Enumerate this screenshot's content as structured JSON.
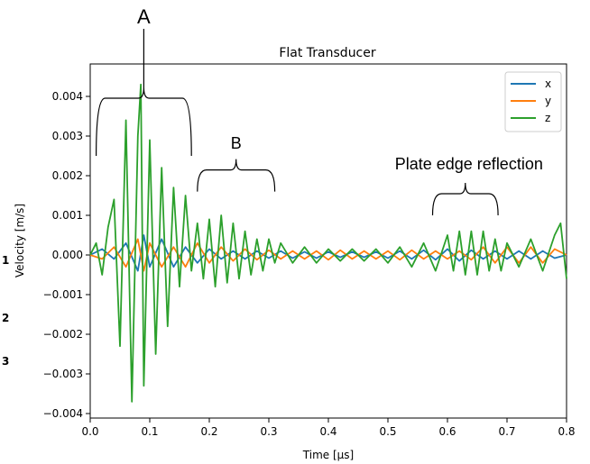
{
  "chart_data": {
    "type": "line",
    "title": "Flat Transducer",
    "xlabel": "Time [µs]",
    "ylabel": "Velocity [m/s]",
    "xlim": [
      0.0,
      0.8
    ],
    "ylim": [
      -0.0041,
      0.0045
    ],
    "xticks": [
      "0.0",
      "0.1",
      "0.2",
      "0.3",
      "0.4",
      "0.5",
      "0.6",
      "0.7",
      "0.8"
    ],
    "yticks": [
      "−0.004",
      "−0.003",
      "−0.002",
      "−0.001",
      "0.000",
      "0.001",
      "0.002",
      "0.003",
      "0.004"
    ],
    "legend_position": "top-right",
    "grid": false,
    "series": [
      {
        "name": "x",
        "color": "#1f77b4",
        "x": [
          0.0,
          0.02,
          0.04,
          0.06,
          0.08,
          0.09,
          0.1,
          0.12,
          0.14,
          0.16,
          0.18,
          0.2,
          0.22,
          0.24,
          0.26,
          0.28,
          0.3,
          0.32,
          0.34,
          0.36,
          0.38,
          0.4,
          0.42,
          0.44,
          0.46,
          0.48,
          0.5,
          0.52,
          0.54,
          0.56,
          0.58,
          0.6,
          0.62,
          0.64,
          0.66,
          0.68,
          0.7,
          0.72,
          0.74,
          0.76,
          0.78,
          0.8
        ],
        "y": [
          0.0,
          0.00015,
          -0.0001,
          0.0003,
          -0.0004,
          0.0005,
          -0.0003,
          0.0004,
          -0.0003,
          0.0002,
          -0.0002,
          0.00015,
          -0.0001,
          0.0001,
          -0.0001,
          0.0001,
          -8e-05,
          0.0001,
          -8e-05,
          8e-05,
          -8e-05,
          8e-05,
          -6e-05,
          8e-05,
          -6e-05,
          8e-05,
          -8e-05,
          0.0001,
          -0.0001,
          0.00012,
          -0.00012,
          0.00015,
          -0.00015,
          0.00012,
          -0.0001,
          0.0001,
          -0.0001,
          0.0001,
          -0.0001,
          0.0001,
          -8e-05,
          0.0
        ]
      },
      {
        "name": "y",
        "color": "#ff7f0e",
        "x": [
          0.0,
          0.02,
          0.04,
          0.06,
          0.08,
          0.09,
          0.1,
          0.12,
          0.14,
          0.16,
          0.18,
          0.2,
          0.22,
          0.24,
          0.26,
          0.28,
          0.3,
          0.32,
          0.34,
          0.36,
          0.38,
          0.4,
          0.42,
          0.44,
          0.46,
          0.48,
          0.5,
          0.52,
          0.54,
          0.56,
          0.58,
          0.6,
          0.62,
          0.64,
          0.66,
          0.68,
          0.7,
          0.72,
          0.74,
          0.76,
          0.78,
          0.8
        ],
        "y": [
          0.0,
          -0.0001,
          0.0002,
          -0.0003,
          0.0004,
          -0.0004,
          0.0003,
          -0.0003,
          0.0002,
          -0.0003,
          0.0003,
          -0.0002,
          0.0002,
          -0.00015,
          0.00015,
          -0.00012,
          0.00012,
          -0.0001,
          0.0001,
          -0.0001,
          0.0001,
          -0.00012,
          0.00012,
          -0.0001,
          0.0001,
          -0.0001,
          0.0001,
          -0.00012,
          0.00012,
          -0.0001,
          0.0001,
          -0.0001,
          0.0001,
          -0.00012,
          0.0002,
          -0.0002,
          0.0002,
          -0.0002,
          0.0002,
          -0.0002,
          0.00015,
          0.0
        ]
      },
      {
        "name": "z",
        "color": "#2ca02c",
        "x": [
          0.0,
          0.01,
          0.02,
          0.03,
          0.04,
          0.05,
          0.06,
          0.07,
          0.08,
          0.085,
          0.09,
          0.1,
          0.11,
          0.12,
          0.13,
          0.14,
          0.15,
          0.16,
          0.17,
          0.18,
          0.19,
          0.2,
          0.21,
          0.22,
          0.23,
          0.24,
          0.25,
          0.26,
          0.27,
          0.28,
          0.29,
          0.3,
          0.31,
          0.32,
          0.34,
          0.36,
          0.38,
          0.4,
          0.42,
          0.44,
          0.46,
          0.48,
          0.5,
          0.52,
          0.54,
          0.56,
          0.58,
          0.6,
          0.61,
          0.62,
          0.63,
          0.64,
          0.65,
          0.66,
          0.67,
          0.68,
          0.69,
          0.7,
          0.72,
          0.74,
          0.76,
          0.78,
          0.79,
          0.8
        ],
        "y": [
          0.0,
          0.0003,
          -0.0005,
          0.0007,
          0.0014,
          -0.0023,
          0.0034,
          -0.0037,
          0.003,
          0.0043,
          -0.0033,
          0.0029,
          -0.0025,
          0.0022,
          -0.0018,
          0.0017,
          -0.0008,
          0.0015,
          -0.0004,
          0.0008,
          -0.0006,
          0.0009,
          -0.0008,
          0.001,
          -0.0007,
          0.0008,
          -0.0006,
          0.0006,
          -0.0005,
          0.0004,
          -0.0004,
          0.0004,
          -0.0002,
          0.0003,
          -0.0002,
          0.0002,
          -0.0002,
          0.00015,
          -0.00015,
          0.00015,
          -0.00015,
          0.00015,
          -0.0002,
          0.0002,
          -0.0003,
          0.0003,
          -0.0004,
          0.0005,
          -0.0004,
          0.0006,
          -0.0005,
          0.0006,
          -0.0005,
          0.0006,
          -0.0004,
          0.0004,
          -0.0004,
          0.0003,
          -0.0003,
          0.0004,
          -0.0004,
          0.0005,
          0.0008,
          -0.0006
        ]
      }
    ],
    "annotations": [
      {
        "label": "A",
        "x_range": [
          0.01,
          0.17
        ],
        "y": 0.0025
      },
      {
        "label": "B",
        "x_range": [
          0.18,
          0.31
        ],
        "y": 0.0016
      },
      {
        "label": "Plate edge reflection",
        "x_range": [
          0.575,
          0.685
        ],
        "y": 0.001
      }
    ]
  },
  "margin_marks": [
    "1",
    "2",
    "3"
  ]
}
